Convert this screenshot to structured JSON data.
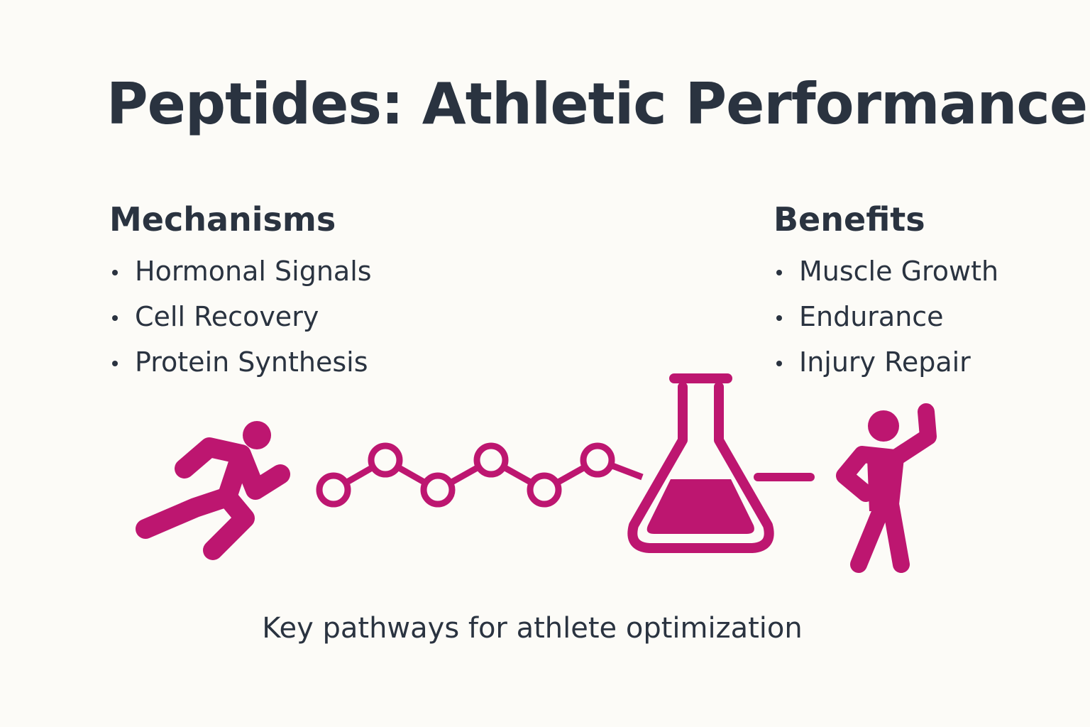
{
  "title": "Peptides: Athletic Performance",
  "mechanisms": {
    "heading": "Mechanisms",
    "items": [
      "Hormonal Signals",
      "Cell Recovery",
      "Protein Synthesis"
    ]
  },
  "benefits": {
    "heading": "Benefits",
    "items": [
      "Muscle Growth",
      "Endurance",
      "Injury Repair"
    ]
  },
  "caption": "Key pathways for athlete optimization"
}
